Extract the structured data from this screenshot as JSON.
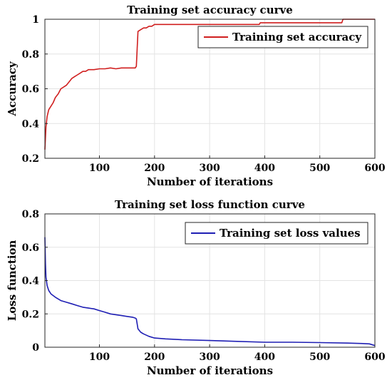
{
  "chart_data": [
    {
      "type": "line",
      "title": "Training set accuracy curve",
      "xlabel": "Number of iterations",
      "ylabel": "Accuracy",
      "xlim": [
        1,
        600
      ],
      "ylim": [
        0.2,
        1.0
      ],
      "xticks": [
        100,
        200,
        300,
        400,
        500,
        600
      ],
      "yticks": [
        0.2,
        0.4,
        0.6,
        0.8,
        1.0
      ],
      "ytick_labels": [
        "0.2",
        "0.4",
        "0.6",
        "0.8",
        "1"
      ],
      "grid": true,
      "legend_position": "top-right",
      "series": [
        {
          "name": "Training set accuracy",
          "color": "#d01f1f",
          "x": [
            1,
            3,
            5,
            8,
            12,
            16,
            20,
            25,
            30,
            35,
            40,
            45,
            50,
            55,
            60,
            65,
            70,
            75,
            80,
            90,
            100,
            110,
            120,
            130,
            140,
            150,
            160,
            165,
            167,
            170,
            175,
            180,
            185,
            190,
            195,
            200,
            250,
            300,
            350,
            390,
            392,
            400,
            450,
            500,
            540,
            542,
            550,
            600
          ],
          "y": [
            0.25,
            0.38,
            0.44,
            0.48,
            0.5,
            0.52,
            0.55,
            0.57,
            0.6,
            0.61,
            0.62,
            0.64,
            0.66,
            0.67,
            0.68,
            0.69,
            0.7,
            0.7,
            0.71,
            0.71,
            0.715,
            0.715,
            0.72,
            0.715,
            0.72,
            0.72,
            0.72,
            0.72,
            0.73,
            0.93,
            0.94,
            0.95,
            0.95,
            0.96,
            0.96,
            0.97,
            0.97,
            0.97,
            0.97,
            0.97,
            0.98,
            0.98,
            0.98,
            0.98,
            0.98,
            1.0,
            1.0,
            1.0
          ]
        }
      ]
    },
    {
      "type": "line",
      "title": "Training set loss function curve",
      "xlabel": "Number of iterations",
      "ylabel": "Loss function",
      "xlim": [
        1,
        600
      ],
      "ylim": [
        0,
        0.8
      ],
      "xticks": [
        100,
        200,
        300,
        400,
        500,
        600
      ],
      "yticks": [
        0,
        0.2,
        0.4,
        0.6,
        0.8
      ],
      "ytick_labels": [
        "0",
        "0.2",
        "0.4",
        "0.6",
        "0.8"
      ],
      "grid": true,
      "legend_position": "top-right",
      "series": [
        {
          "name": "Training set loss values",
          "color": "#1f1fb4",
          "x": [
            1,
            2,
            3,
            5,
            8,
            12,
            20,
            30,
            40,
            50,
            60,
            70,
            80,
            90,
            100,
            110,
            120,
            130,
            140,
            150,
            160,
            165,
            167,
            170,
            175,
            180,
            190,
            200,
            220,
            250,
            300,
            350,
            400,
            450,
            500,
            550,
            580,
            590,
            600
          ],
          "y": [
            0.66,
            0.5,
            0.42,
            0.37,
            0.34,
            0.32,
            0.3,
            0.28,
            0.27,
            0.26,
            0.25,
            0.24,
            0.235,
            0.23,
            0.22,
            0.21,
            0.2,
            0.195,
            0.19,
            0.185,
            0.18,
            0.175,
            0.17,
            0.11,
            0.09,
            0.08,
            0.065,
            0.055,
            0.05,
            0.045,
            0.04,
            0.035,
            0.03,
            0.03,
            0.028,
            0.025,
            0.022,
            0.02,
            0.01
          ]
        }
      ]
    }
  ]
}
